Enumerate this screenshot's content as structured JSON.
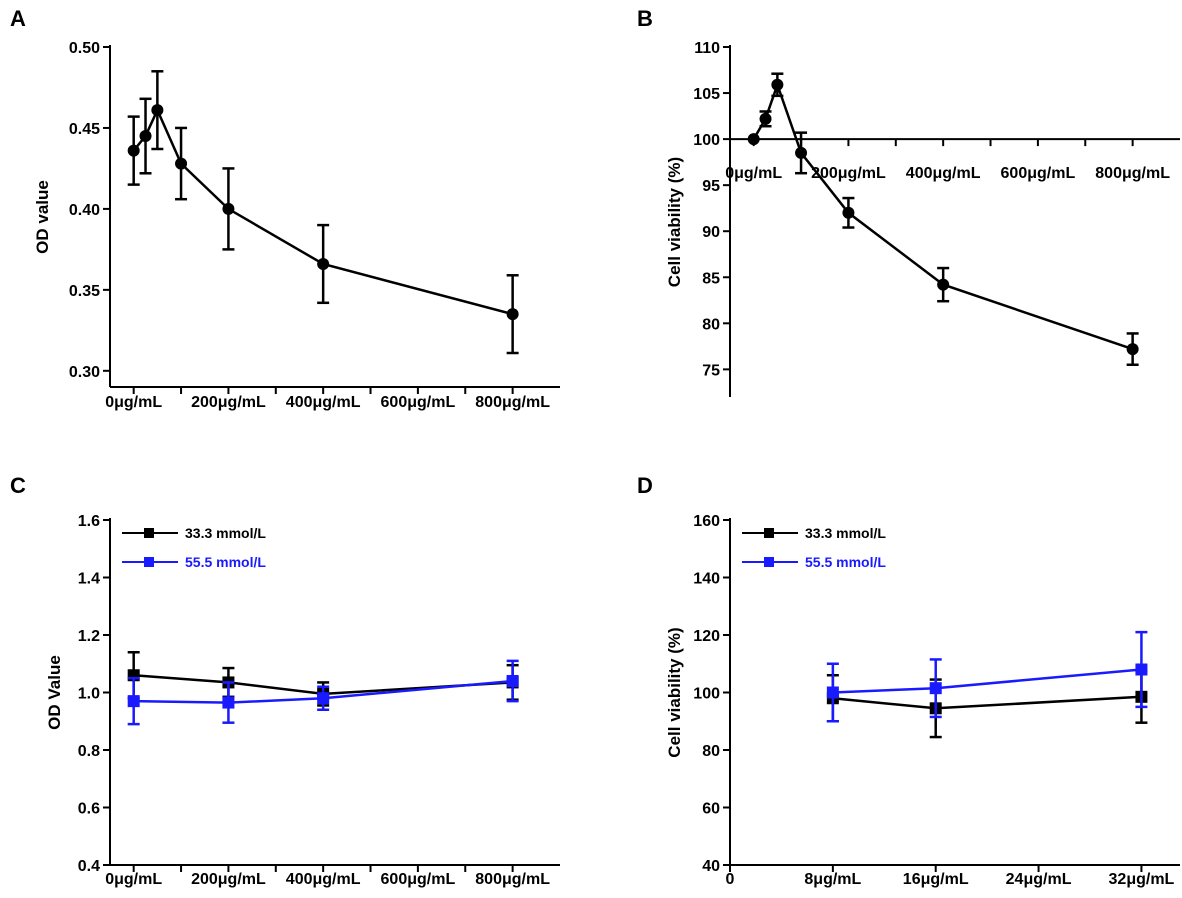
{
  "colors": {
    "black": "#000000",
    "blue": "#1a1aff"
  },
  "chart_data": [
    {
      "panel": "A",
      "type": "line",
      "ylabel": "OD value",
      "ylim": [
        0.29,
        0.5
      ],
      "yticks": [
        0.3,
        0.35,
        0.4,
        0.45,
        0.5
      ],
      "ytick_labels": [
        "0.30",
        "0.35",
        "0.40",
        "0.45",
        "0.50"
      ],
      "xlim": [
        -50,
        900
      ],
      "xticks": [
        0,
        100,
        200,
        300,
        400,
        500,
        600,
        700,
        800
      ],
      "xtick_labels": [
        "0μg/mL",
        "",
        "200μg/mL",
        "",
        "400μg/mL",
        "",
        "600μg/mL",
        "",
        "800μg/mL"
      ],
      "series": [
        {
          "name": "",
          "color": "#000000",
          "marker": "circle",
          "x": [
            0,
            25,
            50,
            100,
            200,
            400,
            800
          ],
          "y": [
            0.436,
            0.445,
            0.461,
            0.428,
            0.4,
            0.366,
            0.335
          ],
          "err": [
            0.021,
            0.023,
            0.024,
            0.022,
            0.025,
            0.024,
            0.024
          ]
        }
      ]
    },
    {
      "panel": "B",
      "type": "line",
      "ylabel": "Cell viability (%)",
      "ylim": [
        72,
        110
      ],
      "yticks": [
        75,
        80,
        85,
        90,
        95,
        100,
        105,
        110
      ],
      "ytick_labels": [
        "75",
        "80",
        "85",
        "90",
        "95",
        "100",
        "105",
        "110"
      ],
      "x_axis_at": 100,
      "xlim": [
        -50,
        900
      ],
      "xticks": [
        0,
        100,
        200,
        300,
        400,
        500,
        600,
        700,
        800
      ],
      "xtick_labels": [
        "0μg/mL",
        "",
        "200μg/mL",
        "",
        "400μg/mL",
        "",
        "600μg/mL",
        "",
        "800μg/mL"
      ],
      "series": [
        {
          "name": "",
          "color": "#000000",
          "marker": "circle",
          "x": [
            0,
            25,
            50,
            100,
            200,
            400,
            800
          ],
          "y": [
            100,
            102.2,
            105.9,
            98.5,
            92.0,
            84.2,
            77.2
          ],
          "err": [
            0,
            0.8,
            1.2,
            2.2,
            1.6,
            1.8,
            1.7
          ]
        }
      ]
    },
    {
      "panel": "C",
      "type": "line",
      "ylabel": "OD Value",
      "ylim": [
        0.4,
        1.6
      ],
      "yticks": [
        0.4,
        0.6,
        0.8,
        1.0,
        1.2,
        1.4,
        1.6
      ],
      "ytick_labels": [
        "0.4",
        "0.6",
        "0.8",
        "1.0",
        "1.2",
        "1.4",
        "1.6"
      ],
      "xlim": [
        -50,
        900
      ],
      "xticks": [
        0,
        100,
        200,
        300,
        400,
        500,
        600,
        700,
        800
      ],
      "xtick_labels": [
        "0μg/mL",
        "",
        "200μg/mL",
        "",
        "400μg/mL",
        "",
        "600μg/mL",
        "",
        "800μg/mL"
      ],
      "legend_position": "top-left",
      "series": [
        {
          "name": "33.3 mmol/L",
          "color": "#000000",
          "marker": "square",
          "x": [
            0,
            200,
            400,
            800
          ],
          "y": [
            1.06,
            1.035,
            0.995,
            1.035
          ],
          "err": [
            0.08,
            0.05,
            0.04,
            0.06
          ]
        },
        {
          "name": "55.5 mmol/L",
          "color": "#1a1aff",
          "marker": "square",
          "x": [
            0,
            200,
            400,
            800
          ],
          "y": [
            0.97,
            0.965,
            0.98,
            1.04
          ],
          "err": [
            0.08,
            0.07,
            0.04,
            0.07
          ]
        }
      ]
    },
    {
      "panel": "D",
      "type": "line",
      "ylabel": "Cell viability (%)",
      "ylim": [
        40,
        160
      ],
      "yticks": [
        40,
        60,
        80,
        100,
        120,
        140,
        160
      ],
      "ytick_labels": [
        "40",
        "60",
        "80",
        "100",
        "120",
        "140",
        "160"
      ],
      "xlim": [
        0,
        35
      ],
      "xticks": [
        0,
        8,
        16,
        24,
        32
      ],
      "xtick_labels": [
        "0",
        "8μg/mL",
        "16μg/mL",
        "24μg/mL",
        "32μg/mL"
      ],
      "legend_position": "top-left",
      "series": [
        {
          "name": "33.3 mmol/L",
          "color": "#000000",
          "marker": "square",
          "x": [
            8,
            16,
            32
          ],
          "y": [
            98,
            94.5,
            98.5
          ],
          "err": [
            8,
            10,
            9
          ]
        },
        {
          "name": "55.5 mmol/L",
          "color": "#1a1aff",
          "marker": "square",
          "x": [
            8,
            16,
            32
          ],
          "y": [
            100,
            101.5,
            108
          ],
          "err": [
            10,
            10,
            13
          ]
        }
      ]
    }
  ]
}
